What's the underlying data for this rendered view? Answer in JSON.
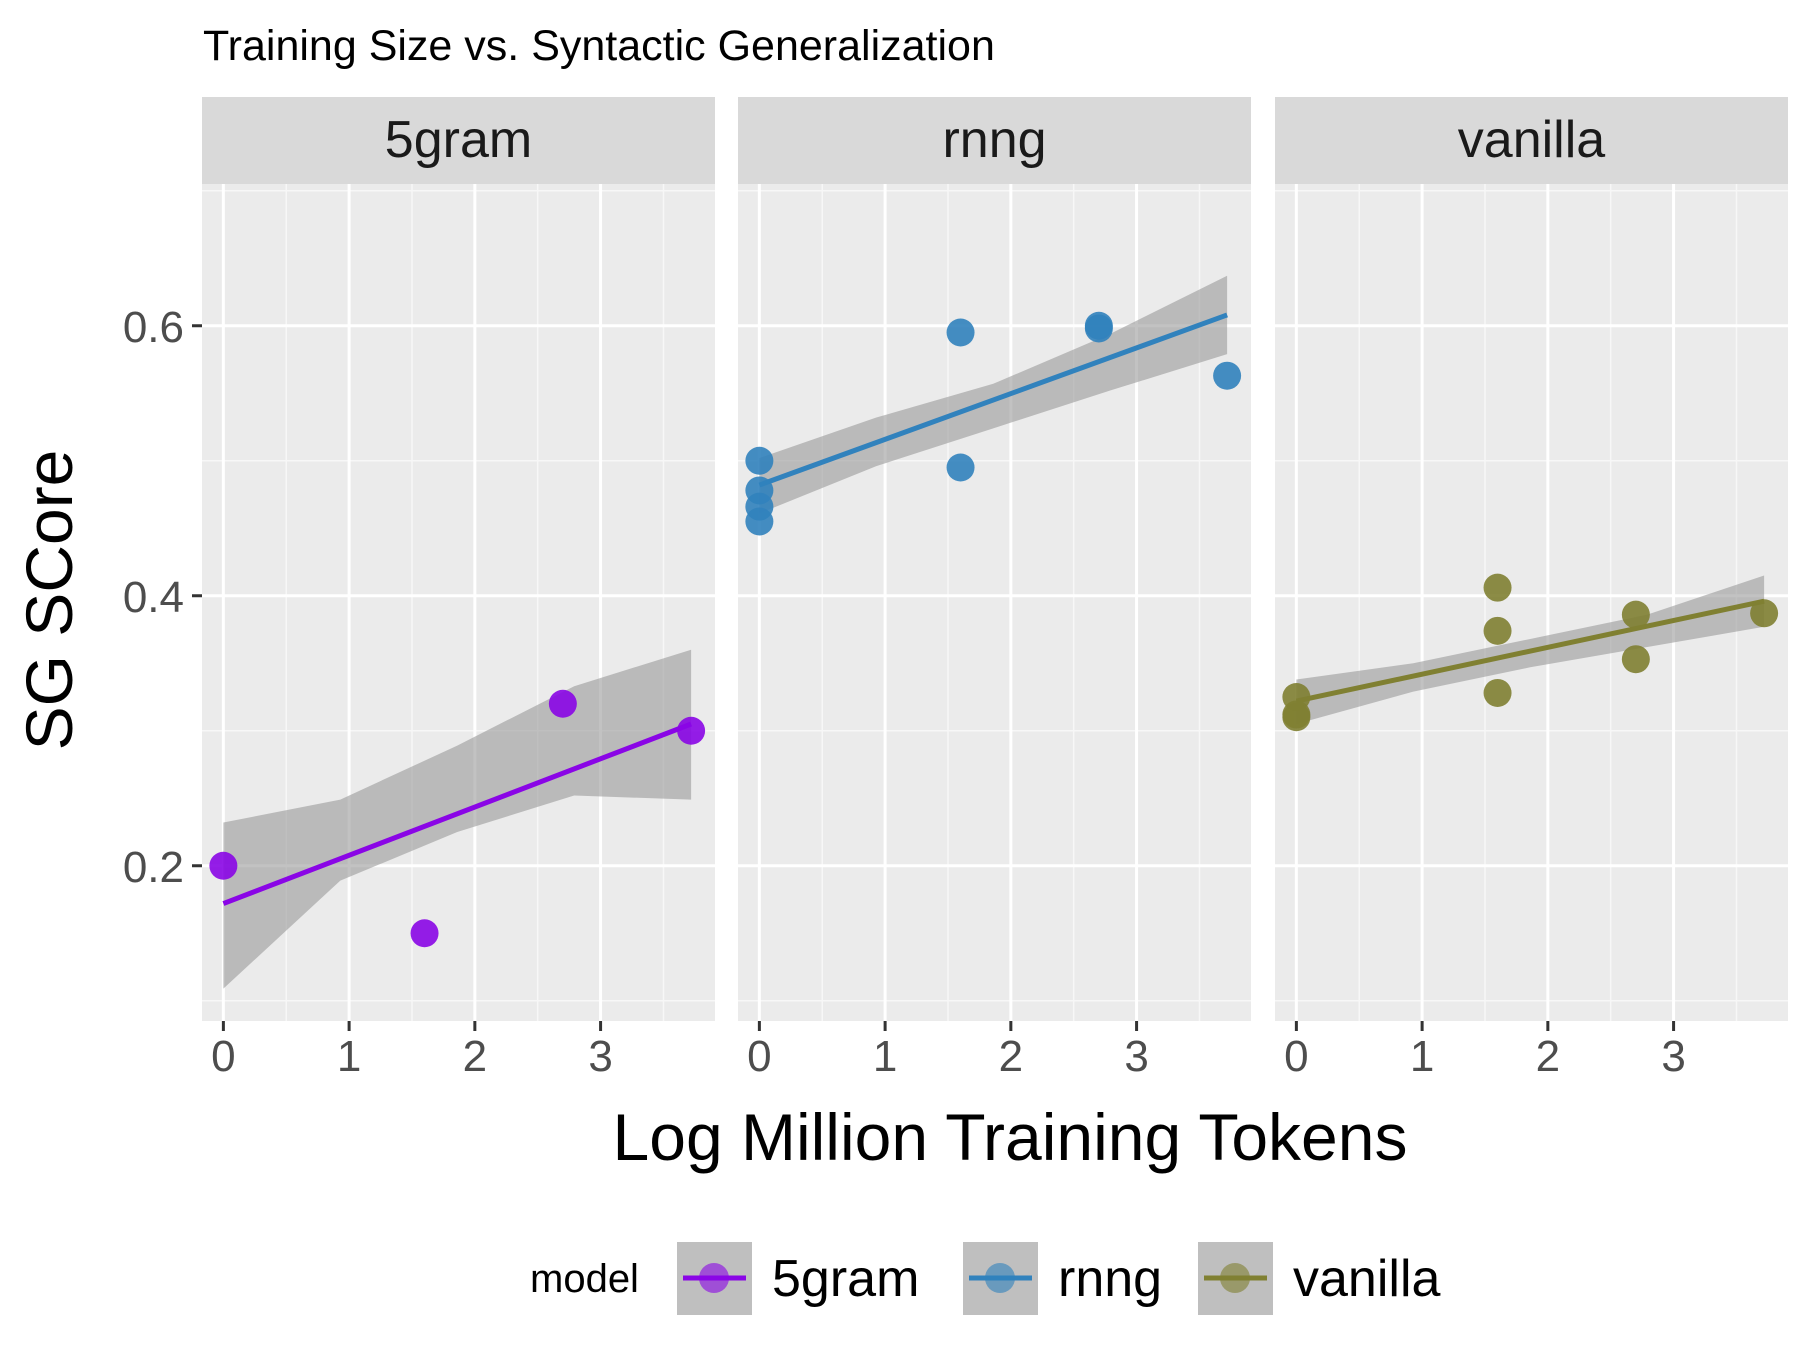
{
  "chart_data": {
    "type": "scatter",
    "title": "Training Size vs. Syntactic Generalization",
    "xlabel": "Log Million Training Tokens",
    "ylabel": "SG SCore",
    "xlim": [
      -0.17,
      3.91
    ],
    "ylim": [
      0.085,
      0.705
    ],
    "x_ticks": [
      0,
      1,
      2,
      3
    ],
    "x_tick_labels": [
      "0",
      "1",
      "2",
      "3"
    ],
    "y_ticks": [
      0.2,
      0.4,
      0.6
    ],
    "y_tick_labels": [
      "0.2",
      "0.4",
      "0.6"
    ],
    "grid": true,
    "legend": {
      "title": "model",
      "position": "bottom"
    },
    "series": [
      {
        "name": "5gram",
        "panel": "5gram",
        "color": "#8A05E6",
        "points": [
          [
            0,
            0.2
          ],
          [
            1.6,
            0.15
          ],
          [
            2.7,
            0.32
          ],
          [
            3.72,
            0.3
          ]
        ],
        "fit": {
          "x0": 0,
          "y0": 0.172,
          "x1": 3.72,
          "y1": 0.305
        },
        "band": {
          "x": [
            0,
            0.93,
            1.86,
            2.79,
            3.72
          ],
          "lower": [
            0.109,
            0.189,
            0.225,
            0.252,
            0.249
          ],
          "upper": [
            0.232,
            0.249,
            0.289,
            0.333,
            0.36
          ]
        }
      },
      {
        "name": "rnng",
        "panel": "rnng",
        "color": "#3182BD",
        "points": [
          [
            0,
            0.5
          ],
          [
            0,
            0.478
          ],
          [
            0,
            0.466
          ],
          [
            0,
            0.455
          ],
          [
            1.6,
            0.595
          ],
          [
            1.6,
            0.495
          ],
          [
            2.7,
            0.6
          ],
          [
            2.7,
            0.598
          ],
          [
            3.72,
            0.563
          ]
        ],
        "fit": {
          "x0": 0,
          "y0": 0.482,
          "x1": 3.72,
          "y1": 0.608
        },
        "band": {
          "x": [
            0,
            0.93,
            1.86,
            2.79,
            3.72
          ],
          "lower": [
            0.461,
            0.496,
            0.524,
            0.552,
            0.579
          ],
          "upper": [
            0.502,
            0.532,
            0.557,
            0.594,
            0.637
          ]
        }
      },
      {
        "name": "vanilla",
        "panel": "vanilla",
        "color": "#808032",
        "points": [
          [
            0,
            0.325
          ],
          [
            0,
            0.312
          ],
          [
            0,
            0.31
          ],
          [
            1.6,
            0.406
          ],
          [
            1.6,
            0.374
          ],
          [
            1.6,
            0.328
          ],
          [
            2.7,
            0.386
          ],
          [
            2.7,
            0.353
          ],
          [
            3.72,
            0.387
          ]
        ],
        "fit": {
          "x0": 0,
          "y0": 0.322,
          "x1": 3.72,
          "y1": 0.396
        },
        "band": {
          "x": [
            0,
            0.93,
            1.86,
            2.79,
            3.72
          ],
          "lower": [
            0.305,
            0.329,
            0.347,
            0.362,
            0.377
          ],
          "upper": [
            0.338,
            0.35,
            0.368,
            0.386,
            0.415
          ]
        }
      }
    ]
  }
}
